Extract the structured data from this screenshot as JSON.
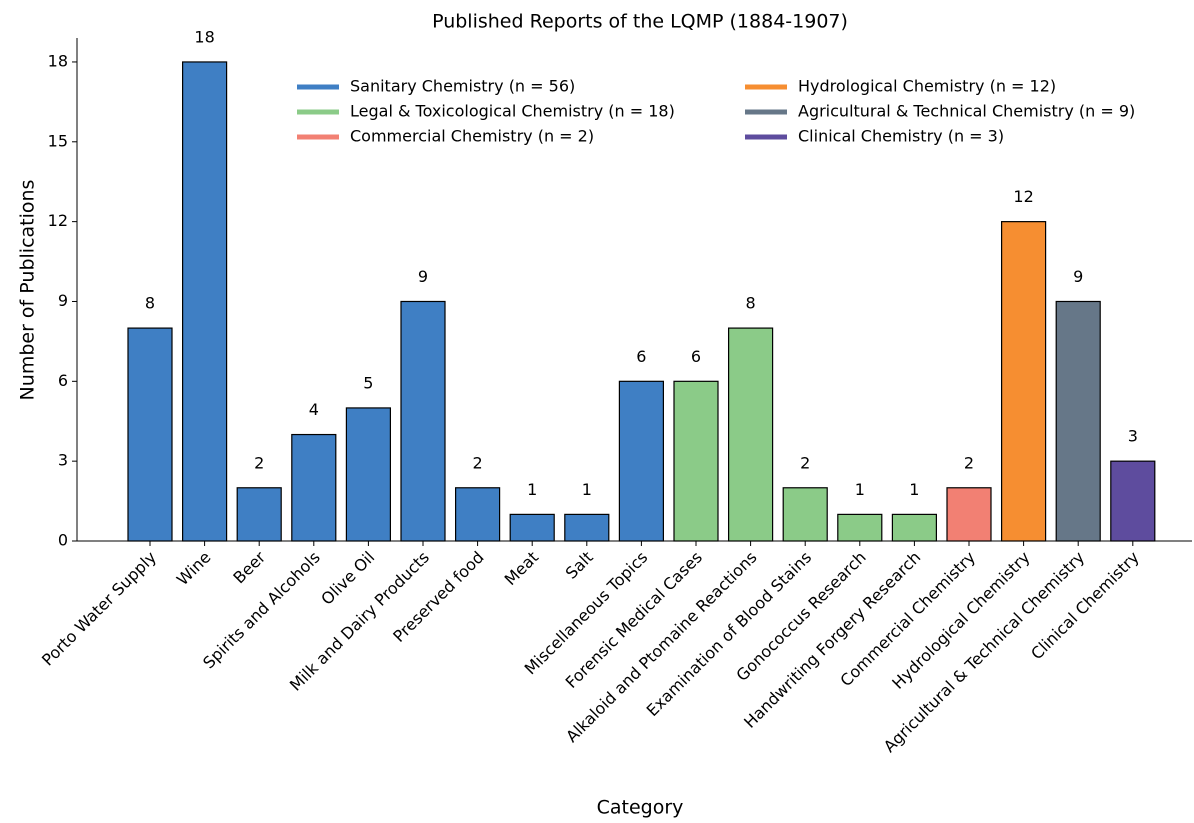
{
  "chart_data": {
    "type": "bar",
    "title": "Published Reports of the LQMP (1884-1907)",
    "x_label": "Category",
    "y_label": "Number of Publications",
    "categories": [
      "Porto Water Supply",
      "Wine",
      "Beer",
      "Spirits and Alcohols",
      "Olive Oil",
      "Milk and Dairy Products",
      "Preserved food",
      "Meat",
      "Salt",
      "Miscellaneous Topics",
      "Forensic Medical Cases",
      "Alkaloid and Ptomaine Reactions",
      "Examination of Blood Stains",
      "Gonococcus Research",
      "Handwriting Forgery Research",
      "Commercial Chemistry",
      "Hydrological Chemistry",
      "Agricultural & Technical Chemistry",
      "Clinical Chemistry"
    ],
    "series": [
      {
        "name": "Sanitary Chemistry (n = 56)",
        "color": "#3f7fc4",
        "values": [
          8,
          18,
          2,
          4,
          5,
          9,
          2,
          1,
          1,
          6,
          null,
          null,
          null,
          null,
          null,
          null,
          null,
          null,
          null
        ]
      },
      {
        "name": "Legal & Toxicological Chemistry (n = 18)",
        "color": "#8bcb88",
        "values": [
          null,
          null,
          null,
          null,
          null,
          null,
          null,
          null,
          null,
          null,
          6,
          8,
          2,
          1,
          1,
          null,
          null,
          null,
          null
        ]
      },
      {
        "name": "Commercial Chemistry (n = 2)",
        "color": "#f28073",
        "values": [
          null,
          null,
          null,
          null,
          null,
          null,
          null,
          null,
          null,
          null,
          null,
          null,
          null,
          null,
          null,
          2,
          null,
          null,
          null
        ]
      },
      {
        "name": "Hydrological Chemistry (n = 12)",
        "color": "#f68e31",
        "values": [
          null,
          null,
          null,
          null,
          null,
          null,
          null,
          null,
          null,
          null,
          null,
          null,
          null,
          null,
          null,
          null,
          12,
          null,
          null
        ]
      },
      {
        "name": "Agricultural & Technical Chemistry (n = 9)",
        "color": "#667788",
        "values": [
          null,
          null,
          null,
          null,
          null,
          null,
          null,
          null,
          null,
          null,
          null,
          null,
          null,
          null,
          null,
          null,
          null,
          9,
          null
        ]
      },
      {
        "name": "Clinical Chemistry (n = 3)",
        "color": "#5e4c9e",
        "values": [
          null,
          null,
          null,
          null,
          null,
          null,
          null,
          null,
          null,
          null,
          null,
          null,
          null,
          null,
          null,
          null,
          null,
          null,
          3
        ]
      }
    ],
    "ylim": [
      0,
      18.9
    ],
    "yticks": [
      0,
      3,
      6,
      9,
      12,
      15,
      18
    ],
    "legend": "upper right"
  }
}
